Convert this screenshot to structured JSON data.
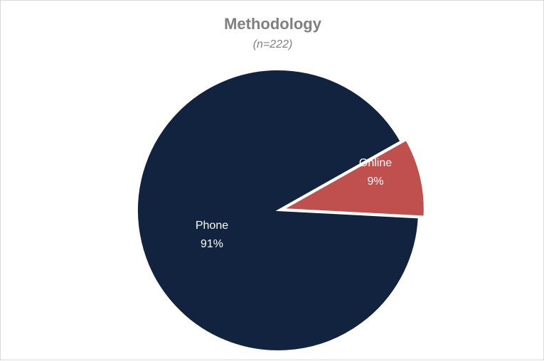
{
  "chart_data": {
    "type": "pie",
    "title": "Methodology",
    "subtitle": "(n=222)",
    "slices": [
      {
        "label": "Phone",
        "value": 91,
        "value_label": "91%",
        "color": "#12233f"
      },
      {
        "label": "Online",
        "value": 9,
        "value_label": "9%",
        "color": "#c0504d",
        "exploded": true
      }
    ],
    "legend": "none",
    "labels": "inside"
  }
}
